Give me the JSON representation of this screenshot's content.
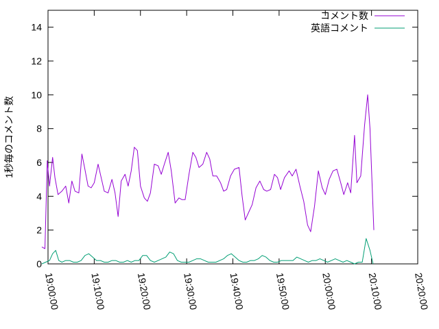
{
  "chart_data": {
    "type": "line",
    "title": "",
    "xlabel": "",
    "ylabel": "1秒毎のコメント数",
    "ylim": [
      0,
      15
    ],
    "yticks": [
      0,
      2,
      4,
      6,
      8,
      10,
      12,
      14
    ],
    "xlim": [
      "19:00:00",
      "20:20:00"
    ],
    "xticks": [
      "19:00:00",
      "19:10:00",
      "19:20:00",
      "19:30:00",
      "19:40:00",
      "19:50:00",
      "20:00:00",
      "20:10:00",
      "20:20:00"
    ],
    "grid": false,
    "legend": "top-right",
    "series": [
      {
        "name": "コメント数",
        "color": "#9400d3",
        "points": [
          [
            "18:58:40",
            1.0
          ],
          [
            "18:59:20",
            0.9
          ],
          [
            "18:59:50",
            6.1
          ],
          [
            "19:00:20",
            4.6
          ],
          [
            "19:01:00",
            6.3
          ],
          [
            "19:01:30",
            5.1
          ],
          [
            "19:02:10",
            4.1
          ],
          [
            "19:03:00",
            4.3
          ],
          [
            "19:03:50",
            4.6
          ],
          [
            "19:04:30",
            3.6
          ],
          [
            "19:05:10",
            4.9
          ],
          [
            "19:05:50",
            4.3
          ],
          [
            "19:06:40",
            4.2
          ],
          [
            "19:07:20",
            6.5
          ],
          [
            "19:07:50",
            5.8
          ],
          [
            "19:08:40",
            4.6
          ],
          [
            "19:09:20",
            4.5
          ],
          [
            "19:10:00",
            4.8
          ],
          [
            "19:10:50",
            5.9
          ],
          [
            "19:11:30",
            5.1
          ],
          [
            "19:12:10",
            4.3
          ],
          [
            "19:13:00",
            4.2
          ],
          [
            "19:13:50",
            5.0
          ],
          [
            "19:14:30",
            4.2
          ],
          [
            "19:15:10",
            2.8
          ],
          [
            "19:15:50",
            4.9
          ],
          [
            "19:16:40",
            5.3
          ],
          [
            "19:17:20",
            4.6
          ],
          [
            "19:18:00",
            5.5
          ],
          [
            "19:18:40",
            6.9
          ],
          [
            "19:19:20",
            6.7
          ],
          [
            "19:20:00",
            4.6
          ],
          [
            "19:20:50",
            3.9
          ],
          [
            "19:21:30",
            3.7
          ],
          [
            "19:22:10",
            4.2
          ],
          [
            "19:23:00",
            5.9
          ],
          [
            "19:23:50",
            5.8
          ],
          [
            "19:24:30",
            5.3
          ],
          [
            "19:25:10",
            5.9
          ],
          [
            "19:26:00",
            6.6
          ],
          [
            "19:26:40",
            5.5
          ],
          [
            "19:27:30",
            3.6
          ],
          [
            "19:28:20",
            3.9
          ],
          [
            "19:29:00",
            3.8
          ],
          [
            "19:29:40",
            3.8
          ],
          [
            "19:30:30",
            5.3
          ],
          [
            "19:31:20",
            6.6
          ],
          [
            "19:32:00",
            6.3
          ],
          [
            "19:32:40",
            5.7
          ],
          [
            "19:33:30",
            5.9
          ],
          [
            "19:34:20",
            6.6
          ],
          [
            "19:35:00",
            6.2
          ],
          [
            "19:35:40",
            5.2
          ],
          [
            "19:36:30",
            5.2
          ],
          [
            "19:37:20",
            4.8
          ],
          [
            "19:38:00",
            4.3
          ],
          [
            "19:38:40",
            4.4
          ],
          [
            "19:39:30",
            5.2
          ],
          [
            "19:40:20",
            5.6
          ],
          [
            "19:41:20",
            5.7
          ],
          [
            "19:42:00",
            4.0
          ],
          [
            "19:42:40",
            2.6
          ],
          [
            "19:43:30",
            3.1
          ],
          [
            "19:44:10",
            3.5
          ],
          [
            "19:45:00",
            4.5
          ],
          [
            "19:45:50",
            4.9
          ],
          [
            "19:46:40",
            4.4
          ],
          [
            "19:47:20",
            4.3
          ],
          [
            "19:48:10",
            4.4
          ],
          [
            "19:49:00",
            5.3
          ],
          [
            "19:49:40",
            5.1
          ],
          [
            "19:50:20",
            4.4
          ],
          [
            "19:51:10",
            5.1
          ],
          [
            "19:52:10",
            5.5
          ],
          [
            "19:52:50",
            5.2
          ],
          [
            "19:53:40",
            5.6
          ],
          [
            "19:54:30",
            4.6
          ],
          [
            "19:55:20",
            3.7
          ],
          [
            "19:56:10",
            2.3
          ],
          [
            "19:56:50",
            1.9
          ],
          [
            "19:57:40",
            3.4
          ],
          [
            "19:58:30",
            5.5
          ],
          [
            "19:59:20",
            4.5
          ],
          [
            "20:00:00",
            4.1
          ],
          [
            "20:00:50",
            5.0
          ],
          [
            "20:01:40",
            5.5
          ],
          [
            "20:02:30",
            5.6
          ],
          [
            "20:03:20",
            4.8
          ],
          [
            "20:04:00",
            4.1
          ],
          [
            "20:04:50",
            4.8
          ],
          [
            "20:05:30",
            4.2
          ],
          [
            "20:06:20",
            7.6
          ],
          [
            "20:06:50",
            4.8
          ],
          [
            "20:07:40",
            5.2
          ],
          [
            "20:08:30",
            8.2
          ],
          [
            "20:09:10",
            10.0
          ],
          [
            "20:09:40",
            8.0
          ],
          [
            "20:10:30",
            2.0
          ]
        ]
      },
      {
        "name": "英語コメント",
        "color": "#009e73",
        "points": [
          [
            "18:58:40",
            0.0
          ],
          [
            "18:59:30",
            0.1
          ],
          [
            "19:00:20",
            0.2
          ],
          [
            "19:01:00",
            0.6
          ],
          [
            "19:01:40",
            0.8
          ],
          [
            "19:02:20",
            0.2
          ],
          [
            "19:03:00",
            0.1
          ],
          [
            "19:03:50",
            0.2
          ],
          [
            "19:04:40",
            0.2
          ],
          [
            "19:05:30",
            0.1
          ],
          [
            "19:06:20",
            0.1
          ],
          [
            "19:07:10",
            0.2
          ],
          [
            "19:08:00",
            0.5
          ],
          [
            "19:08:50",
            0.6
          ],
          [
            "19:09:40",
            0.4
          ],
          [
            "19:10:30",
            0.2
          ],
          [
            "19:11:20",
            0.2
          ],
          [
            "19:12:10",
            0.1
          ],
          [
            "19:13:00",
            0.1
          ],
          [
            "19:13:50",
            0.2
          ],
          [
            "19:14:40",
            0.2
          ],
          [
            "19:15:30",
            0.1
          ],
          [
            "19:16:20",
            0.1
          ],
          [
            "19:17:10",
            0.2
          ],
          [
            "19:18:00",
            0.1
          ],
          [
            "19:18:50",
            0.2
          ],
          [
            "19:19:40",
            0.2
          ],
          [
            "19:20:30",
            0.5
          ],
          [
            "19:21:20",
            0.5
          ],
          [
            "19:22:10",
            0.2
          ],
          [
            "19:23:00",
            0.1
          ],
          [
            "19:23:50",
            0.2
          ],
          [
            "19:24:40",
            0.3
          ],
          [
            "19:25:30",
            0.4
          ],
          [
            "19:26:20",
            0.7
          ],
          [
            "19:27:10",
            0.6
          ],
          [
            "19:28:00",
            0.2
          ],
          [
            "19:28:50",
            0.1
          ],
          [
            "19:29:40",
            0.1
          ],
          [
            "19:30:30",
            0.1
          ],
          [
            "19:31:20",
            0.2
          ],
          [
            "19:32:10",
            0.3
          ],
          [
            "19:33:00",
            0.3
          ],
          [
            "19:33:50",
            0.2
          ],
          [
            "19:34:40",
            0.1
          ],
          [
            "19:35:30",
            0.1
          ],
          [
            "19:36:20",
            0.1
          ],
          [
            "19:37:10",
            0.2
          ],
          [
            "19:38:00",
            0.3
          ],
          [
            "19:38:50",
            0.5
          ],
          [
            "19:39:40",
            0.6
          ],
          [
            "19:40:30",
            0.4
          ],
          [
            "19:41:20",
            0.2
          ],
          [
            "19:42:10",
            0.1
          ],
          [
            "19:43:00",
            0.1
          ],
          [
            "19:43:50",
            0.2
          ],
          [
            "19:44:40",
            0.2
          ],
          [
            "19:45:30",
            0.3
          ],
          [
            "19:46:20",
            0.5
          ],
          [
            "19:47:10",
            0.4
          ],
          [
            "19:48:00",
            0.2
          ],
          [
            "19:48:50",
            0.1
          ],
          [
            "19:49:40",
            0.1
          ],
          [
            "19:50:30",
            0.2
          ],
          [
            "19:51:20",
            0.2
          ],
          [
            "19:52:10",
            0.2
          ],
          [
            "19:53:00",
            0.2
          ],
          [
            "19:53:50",
            0.4
          ],
          [
            "19:54:40",
            0.3
          ],
          [
            "19:55:30",
            0.2
          ],
          [
            "19:56:20",
            0.1
          ],
          [
            "19:57:10",
            0.2
          ],
          [
            "19:58:00",
            0.2
          ],
          [
            "19:58:50",
            0.3
          ],
          [
            "19:59:40",
            0.2
          ],
          [
            "20:00:30",
            0.1
          ],
          [
            "20:01:20",
            0.2
          ],
          [
            "20:02:10",
            0.3
          ],
          [
            "20:03:00",
            0.2
          ],
          [
            "20:03:50",
            0.1
          ],
          [
            "20:04:40",
            0.2
          ],
          [
            "20:05:30",
            0.1
          ],
          [
            "20:06:20",
            0.0
          ],
          [
            "20:07:10",
            0.1
          ],
          [
            "20:08:00",
            0.1
          ],
          [
            "20:08:50",
            1.5
          ],
          [
            "20:09:40",
            0.8
          ],
          [
            "20:10:20",
            0.0
          ]
        ]
      }
    ]
  }
}
